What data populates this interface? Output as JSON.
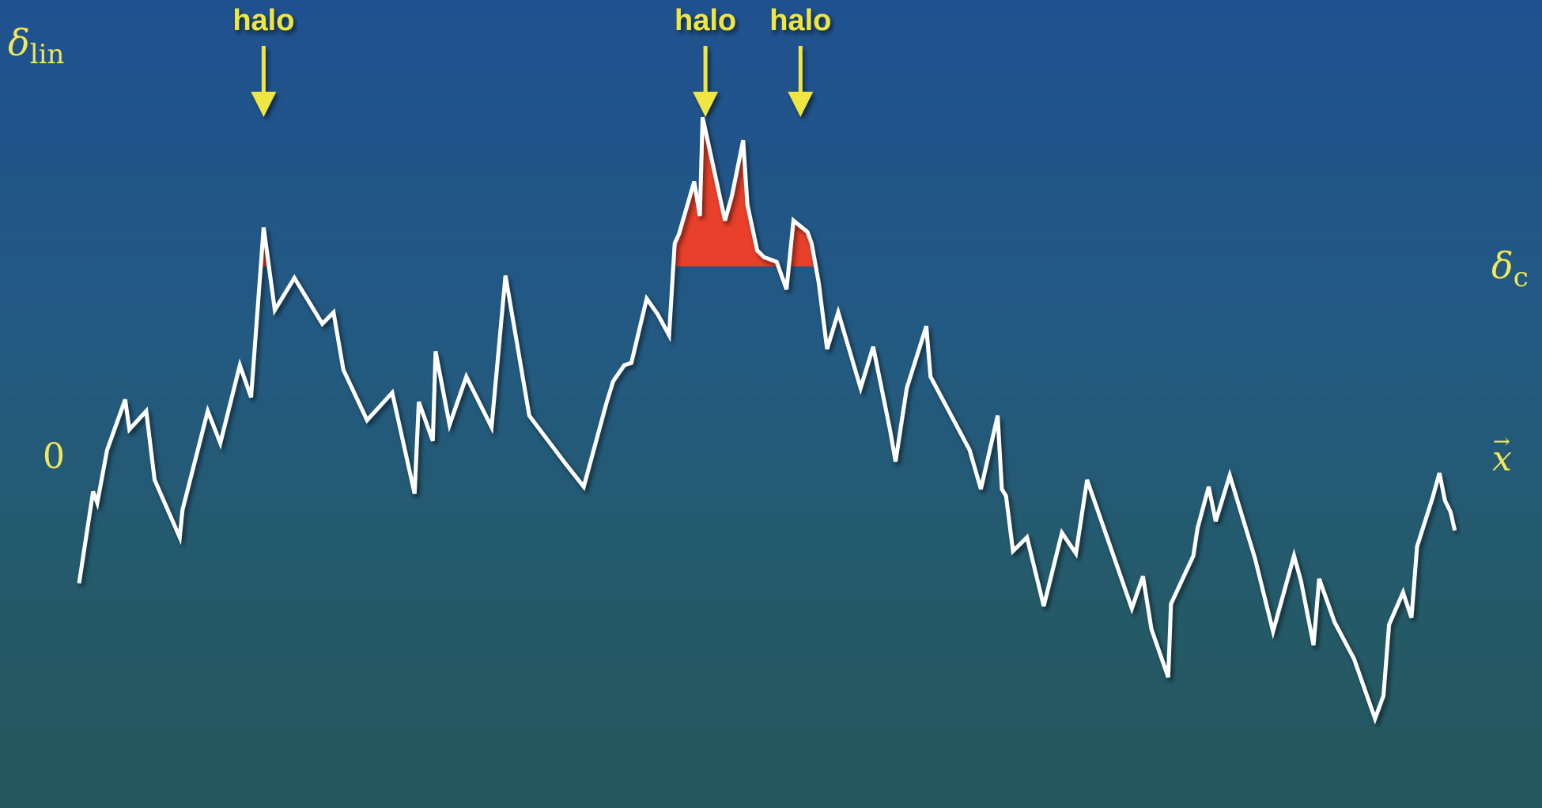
{
  "labels": {
    "y_axis_symbol": "δ",
    "y_axis_subscript": "lin",
    "threshold_symbol": "δ",
    "threshold_subscript": "c",
    "zero": "0",
    "x_axis_symbol": "x",
    "x_axis_vector_mark": "→"
  },
  "halos": [
    {
      "label": "halo",
      "position": 0.132
    },
    {
      "label": "halo",
      "position": 0.448
    },
    {
      "label": "halo",
      "position": 0.516
    }
  ],
  "colors": {
    "curve": "#ffffff",
    "threshold_line": "#ffffff",
    "shaded_excess": "#e8402a",
    "annotation": "#f0e642",
    "axis": "#ffffff"
  },
  "curve": {
    "threshold_level": 0.83,
    "min_level": -1.14,
    "max_level": 1.48,
    "points": [
      [
        0.0,
        -0.55
      ],
      [
        0.01,
        -0.15
      ],
      [
        0.013,
        -0.2
      ],
      [
        0.02,
        0.03
      ],
      [
        0.033,
        0.25
      ],
      [
        0.036,
        0.12
      ],
      [
        0.048,
        0.2
      ],
      [
        0.054,
        -0.1
      ],
      [
        0.072,
        -0.35
      ],
      [
        0.074,
        -0.23
      ],
      [
        0.092,
        0.2
      ],
      [
        0.101,
        0.06
      ],
      [
        0.115,
        0.4
      ],
      [
        0.123,
        0.26
      ],
      [
        0.132,
        1.0
      ],
      [
        0.14,
        0.64
      ],
      [
        0.154,
        0.78
      ],
      [
        0.174,
        0.58
      ],
      [
        0.182,
        0.63
      ],
      [
        0.189,
        0.38
      ],
      [
        0.206,
        0.16
      ],
      [
        0.224,
        0.28
      ],
      [
        0.24,
        -0.16
      ],
      [
        0.243,
        0.24
      ],
      [
        0.253,
        0.07
      ],
      [
        0.255,
        0.46
      ],
      [
        0.265,
        0.14
      ],
      [
        0.277,
        0.35
      ],
      [
        0.295,
        0.13
      ],
      [
        0.305,
        0.79
      ],
      [
        0.322,
        0.18
      ],
      [
        0.348,
        -0.03
      ],
      [
        0.361,
        -0.13
      ],
      [
        0.377,
        0.23
      ],
      [
        0.382,
        0.33
      ],
      [
        0.39,
        0.4
      ],
      [
        0.395,
        0.41
      ],
      [
        0.406,
        0.69
      ],
      [
        0.414,
        0.62
      ],
      [
        0.422,
        0.53
      ],
      [
        0.426,
        0.93
      ],
      [
        0.429,
        0.97
      ],
      [
        0.44,
        1.2
      ],
      [
        0.444,
        1.05
      ],
      [
        0.446,
        1.48
      ],
      [
        0.462,
        1.03
      ],
      [
        0.467,
        1.14
      ],
      [
        0.475,
        1.38
      ],
      [
        0.478,
        1.1
      ],
      [
        0.485,
        0.9
      ],
      [
        0.49,
        0.87
      ],
      [
        0.499,
        0.85
      ],
      [
        0.506,
        0.73
      ],
      [
        0.511,
        1.03
      ],
      [
        0.521,
        0.98
      ],
      [
        0.524,
        0.93
      ],
      [
        0.529,
        0.76
      ],
      [
        0.535,
        0.47
      ],
      [
        0.543,
        0.63
      ],
      [
        0.559,
        0.3
      ],
      [
        0.568,
        0.48
      ],
      [
        0.58,
        0.12
      ],
      [
        0.584,
        -0.02
      ],
      [
        0.592,
        0.3
      ],
      [
        0.606,
        0.57
      ],
      [
        0.609,
        0.35
      ],
      [
        0.637,
        0.03
      ],
      [
        0.645,
        -0.14
      ],
      [
        0.657,
        0.18
      ],
      [
        0.66,
        -0.14
      ],
      [
        0.663,
        -0.17
      ],
      [
        0.668,
        -0.41
      ],
      [
        0.678,
        -0.35
      ],
      [
        0.69,
        -0.65
      ],
      [
        0.703,
        -0.33
      ],
      [
        0.713,
        -0.42
      ],
      [
        0.721,
        -0.1
      ],
      [
        0.753,
        -0.66
      ],
      [
        0.761,
        -0.52
      ],
      [
        0.767,
        -0.75
      ],
      [
        0.779,
        -0.96
      ],
      [
        0.781,
        -0.64
      ],
      [
        0.797,
        -0.43
      ],
      [
        0.8,
        -0.31
      ],
      [
        0.808,
        -0.13
      ],
      [
        0.813,
        -0.28
      ],
      [
        0.823,
        -0.08
      ],
      [
        0.841,
        -0.44
      ],
      [
        0.854,
        -0.76
      ],
      [
        0.869,
        -0.43
      ],
      [
        0.874,
        -0.54
      ],
      [
        0.883,
        -0.82
      ],
      [
        0.887,
        -0.53
      ],
      [
        0.898,
        -0.72
      ],
      [
        0.912,
        -0.88
      ],
      [
        0.92,
        -1.02
      ],
      [
        0.927,
        -1.14
      ],
      [
        0.933,
        -1.04
      ],
      [
        0.937,
        -0.73
      ],
      [
        0.947,
        -0.59
      ],
      [
        0.953,
        -0.7
      ],
      [
        0.957,
        -0.39
      ],
      [
        0.968,
        -0.18
      ],
      [
        0.973,
        -0.07
      ],
      [
        0.977,
        -0.19
      ],
      [
        0.981,
        -0.24
      ],
      [
        0.984,
        -0.32
      ]
    ]
  }
}
